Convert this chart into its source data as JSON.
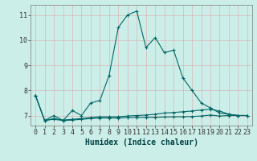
{
  "xlabel": "Humidex (Indice chaleur)",
  "ylabel": "",
  "background_color": "#cceee8",
  "grid_color": "#b0d8d0",
  "line_color": "#006666",
  "xlim": [
    -0.5,
    23.5
  ],
  "ylim": [
    6.6,
    11.4
  ],
  "yticks": [
    7,
    8,
    9,
    10,
    11
  ],
  "xticks": [
    0,
    1,
    2,
    3,
    4,
    5,
    6,
    7,
    8,
    9,
    10,
    11,
    12,
    13,
    14,
    15,
    16,
    17,
    18,
    19,
    20,
    21,
    22,
    23
  ],
  "series1_x": [
    0,
    1,
    2,
    3,
    4,
    5,
    6,
    7,
    8,
    9,
    10,
    11,
    12,
    13,
    14,
    15,
    16,
    17,
    18,
    19,
    20,
    21,
    22,
    23
  ],
  "series1_y": [
    7.8,
    6.8,
    7.0,
    6.8,
    7.2,
    7.0,
    7.5,
    7.6,
    8.6,
    10.5,
    11.0,
    11.15,
    9.7,
    10.1,
    9.5,
    9.6,
    8.5,
    8.0,
    7.5,
    7.3,
    7.1,
    7.05,
    7.0,
    7.0
  ],
  "series2_x": [
    0,
    1,
    2,
    3,
    4,
    5,
    6,
    7,
    8,
    9,
    10,
    11,
    12,
    13,
    14,
    15,
    16,
    17,
    18,
    19,
    20,
    21,
    22,
    23
  ],
  "series2_y": [
    7.8,
    6.8,
    6.88,
    6.82,
    6.85,
    6.88,
    6.92,
    6.95,
    6.95,
    6.95,
    6.98,
    7.0,
    7.02,
    7.05,
    7.1,
    7.12,
    7.15,
    7.18,
    7.22,
    7.25,
    7.18,
    7.05,
    7.0,
    7.0
  ],
  "series3_x": [
    0,
    1,
    2,
    3,
    4,
    5,
    6,
    7,
    8,
    9,
    10,
    11,
    12,
    13,
    14,
    15,
    16,
    17,
    18,
    19,
    20,
    21,
    22,
    23
  ],
  "series3_y": [
    7.8,
    6.8,
    6.85,
    6.8,
    6.82,
    6.85,
    6.88,
    6.9,
    6.9,
    6.9,
    6.92,
    6.92,
    6.93,
    6.93,
    6.94,
    6.95,
    6.95,
    6.96,
    6.98,
    7.02,
    6.98,
    7.0,
    7.0,
    7.0
  ],
  "title_fontsize": 7,
  "xlabel_fontsize": 7,
  "tick_fontsize": 6
}
